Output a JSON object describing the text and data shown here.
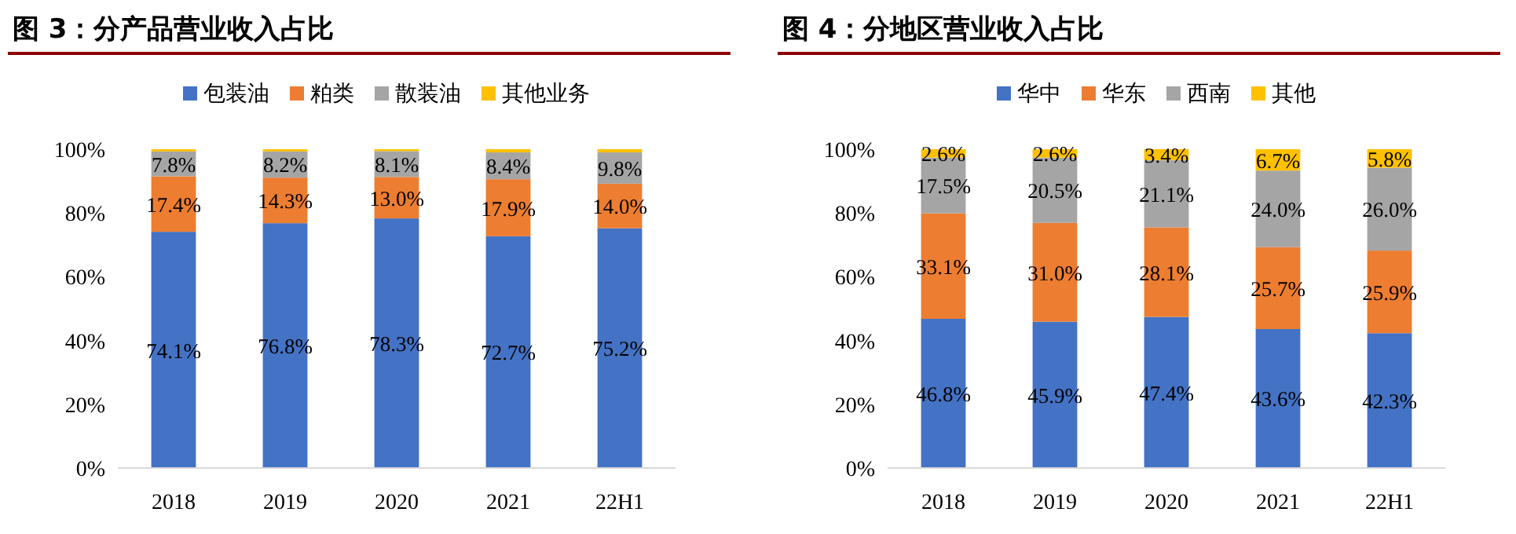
{
  "chart_data": [
    {
      "type": "bar",
      "title": "图 3：分产品营业收入占比",
      "stacked": true,
      "legend": "top",
      "categories": [
        "2018",
        "2019",
        "2020",
        "2021",
        "22H1"
      ],
      "ylim": [
        0,
        100
      ],
      "yticks": [
        {
          "value": 0,
          "label": "0%"
        },
        {
          "value": 20,
          "label": "20%"
        },
        {
          "value": 40,
          "label": "40%"
        },
        {
          "value": 60,
          "label": "60%"
        },
        {
          "value": 80,
          "label": "80%"
        },
        {
          "value": 100,
          "label": "100%"
        }
      ],
      "series": [
        {
          "name": "包装油",
          "color": "#4472c4",
          "values": [
            74.1,
            76.8,
            78.3,
            72.7,
            75.2
          ],
          "value_labels": [
            "74.1%",
            "76.8%",
            "78.3%",
            "72.7%",
            "75.2%"
          ]
        },
        {
          "name": "粕类",
          "color": "#ed7d31",
          "values": [
            17.4,
            14.3,
            13.0,
            17.9,
            14.0
          ],
          "value_labels": [
            "17.4%",
            "14.3%",
            "13.0%",
            "17.9%",
            "14.0%"
          ]
        },
        {
          "name": "散装油",
          "color": "#a5a5a5",
          "values": [
            7.8,
            8.2,
            8.1,
            8.4,
            9.8
          ],
          "value_labels": [
            "7.8%",
            "8.2%",
            "8.1%",
            "8.4%",
            "9.8%"
          ]
        },
        {
          "name": "其他业务",
          "color": "#ffc000",
          "values": [
            0.7,
            0.7,
            0.6,
            1.0,
            1.0
          ]
        }
      ]
    },
    {
      "type": "bar",
      "title": "图 4：分地区营业收入占比",
      "stacked": true,
      "legend": "top",
      "categories": [
        "2018",
        "2019",
        "2020",
        "2021",
        "22H1"
      ],
      "ylim": [
        0,
        100
      ],
      "yticks": [
        {
          "value": 0,
          "label": "0%"
        },
        {
          "value": 20,
          "label": "20%"
        },
        {
          "value": 40,
          "label": "40%"
        },
        {
          "value": 60,
          "label": "60%"
        },
        {
          "value": 80,
          "label": "80%"
        },
        {
          "value": 100,
          "label": "100%"
        }
      ],
      "series": [
        {
          "name": "华中",
          "color": "#4472c4",
          "values": [
            46.8,
            45.9,
            47.4,
            43.6,
            42.3
          ],
          "value_labels": [
            "46.8%",
            "45.9%",
            "47.4%",
            "43.6%",
            "42.3%"
          ]
        },
        {
          "name": "华东",
          "color": "#ed7d31",
          "values": [
            33.1,
            31.0,
            28.1,
            25.7,
            25.9
          ],
          "value_labels": [
            "33.1%",
            "31.0%",
            "28.1%",
            "25.7%",
            "25.9%"
          ]
        },
        {
          "name": "西南",
          "color": "#a5a5a5",
          "values": [
            17.5,
            20.5,
            21.1,
            24.0,
            26.0
          ],
          "value_labels": [
            "17.5%",
            "20.5%",
            "21.1%",
            "24.0%",
            "26.0%"
          ]
        },
        {
          "name": "其他",
          "color": "#ffc000",
          "values": [
            2.6,
            2.6,
            3.4,
            6.7,
            5.8
          ],
          "value_labels": [
            "2.6%",
            "2.6%",
            "3.4%",
            "6.7%",
            "5.8%"
          ]
        }
      ]
    }
  ]
}
